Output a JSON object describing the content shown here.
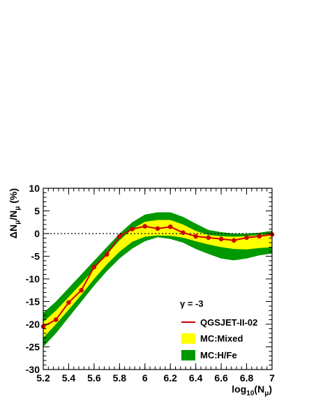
{
  "chart_data": {
    "type": "line",
    "title": "",
    "xlabel": {
      "base": "log",
      "sub1": "10",
      "mid": "(N",
      "sub2": "μ",
      "end": ")"
    },
    "ylabel": {
      "pre": "ΔN",
      "sub1": "μ",
      "mid": "/N",
      "sub2": "μ",
      "end": " (%)"
    },
    "xlim": [
      5.2,
      7.0
    ],
    "ylim": [
      -30,
      10
    ],
    "x_ticks": [
      5.2,
      5.4,
      5.6,
      5.8,
      6.0,
      6.2,
      6.4,
      6.6,
      6.8,
      7.0
    ],
    "x_tick_labels": [
      "5.2",
      "5.4",
      "5.6",
      "5.8",
      "6",
      "6.2",
      "6.4",
      "6.6",
      "6.8",
      "7"
    ],
    "y_ticks": [
      10,
      5,
      0,
      -5,
      -10,
      -15,
      -20,
      -25,
      -30
    ],
    "y_tick_labels": [
      "10",
      "5",
      "0",
      "-5",
      "-10",
      "-15",
      "-20",
      "-25",
      "-30"
    ],
    "grid": false,
    "reference_line_y": 0,
    "annotation": "γ = -3",
    "legend_position": "bottom-right",
    "legend": [
      {
        "label": "QGSJET-II-02",
        "kind": "line-marker",
        "color": "#cc0000"
      },
      {
        "label": "MC:Mixed",
        "kind": "fill",
        "color": "#ffff00"
      },
      {
        "label": "MC:H/Fe",
        "kind": "fill",
        "color": "#009900"
      }
    ],
    "series": [
      {
        "name": "QGSJET-II-02",
        "color": "#cc0000",
        "x": [
          5.2,
          5.3,
          5.4,
          5.5,
          5.6,
          5.7,
          5.8,
          5.9,
          6.0,
          6.1,
          6.2,
          6.3,
          6.4,
          6.5,
          6.6,
          6.7,
          6.8,
          6.9,
          7.0
        ],
        "y": [
          -20.5,
          -19.0,
          -15.2,
          -12.5,
          -7.4,
          -4.6,
          -0.6,
          1.0,
          1.6,
          1.1,
          1.5,
          0.2,
          -0.6,
          -0.9,
          -1.2,
          -1.5,
          -0.9,
          -0.6,
          -0.2
        ]
      }
    ],
    "bands": [
      {
        "name": "MC:H/Fe",
        "color": "#009900",
        "x": [
          5.2,
          5.3,
          5.4,
          5.5,
          5.6,
          5.7,
          5.8,
          5.9,
          6.0,
          6.1,
          6.2,
          6.3,
          6.4,
          6.5,
          6.6,
          6.7,
          6.8,
          6.9,
          7.0
        ],
        "upper": [
          -17.5,
          -15.0,
          -12.0,
          -9.0,
          -6.0,
          -3.0,
          0.0,
          2.5,
          4.2,
          4.7,
          4.7,
          3.7,
          2.2,
          0.8,
          0.3,
          0.0,
          0.0,
          0.2,
          0.6
        ],
        "lower": [
          -25.0,
          -22.0,
          -18.5,
          -15.0,
          -11.5,
          -8.3,
          -5.5,
          -3.3,
          -1.7,
          -0.8,
          -1.2,
          -2.0,
          -3.4,
          -4.5,
          -5.5,
          -5.9,
          -5.5,
          -4.8,
          -4.4
        ]
      },
      {
        "name": "MC:Mixed",
        "color": "#ffff00",
        "x": [
          5.2,
          5.3,
          5.4,
          5.5,
          5.6,
          5.7,
          5.8,
          5.9,
          6.0,
          6.1,
          6.2,
          6.3,
          6.4,
          6.5,
          6.6,
          6.7,
          6.8,
          6.9,
          7.0
        ],
        "upper": [
          -19.5,
          -17.0,
          -14.0,
          -11.0,
          -7.8,
          -4.6,
          -1.5,
          1.0,
          2.6,
          3.0,
          3.0,
          2.0,
          0.6,
          -0.3,
          -0.6,
          -0.7,
          -0.6,
          -0.3,
          -0.1
        ],
        "lower": [
          -23.0,
          -20.0,
          -16.8,
          -13.5,
          -10.0,
          -6.8,
          -4.0,
          -1.8,
          -0.7,
          -0.4,
          -0.5,
          -0.9,
          -1.7,
          -2.4,
          -3.0,
          -3.4,
          -3.5,
          -3.2,
          -3.0
        ]
      }
    ]
  }
}
